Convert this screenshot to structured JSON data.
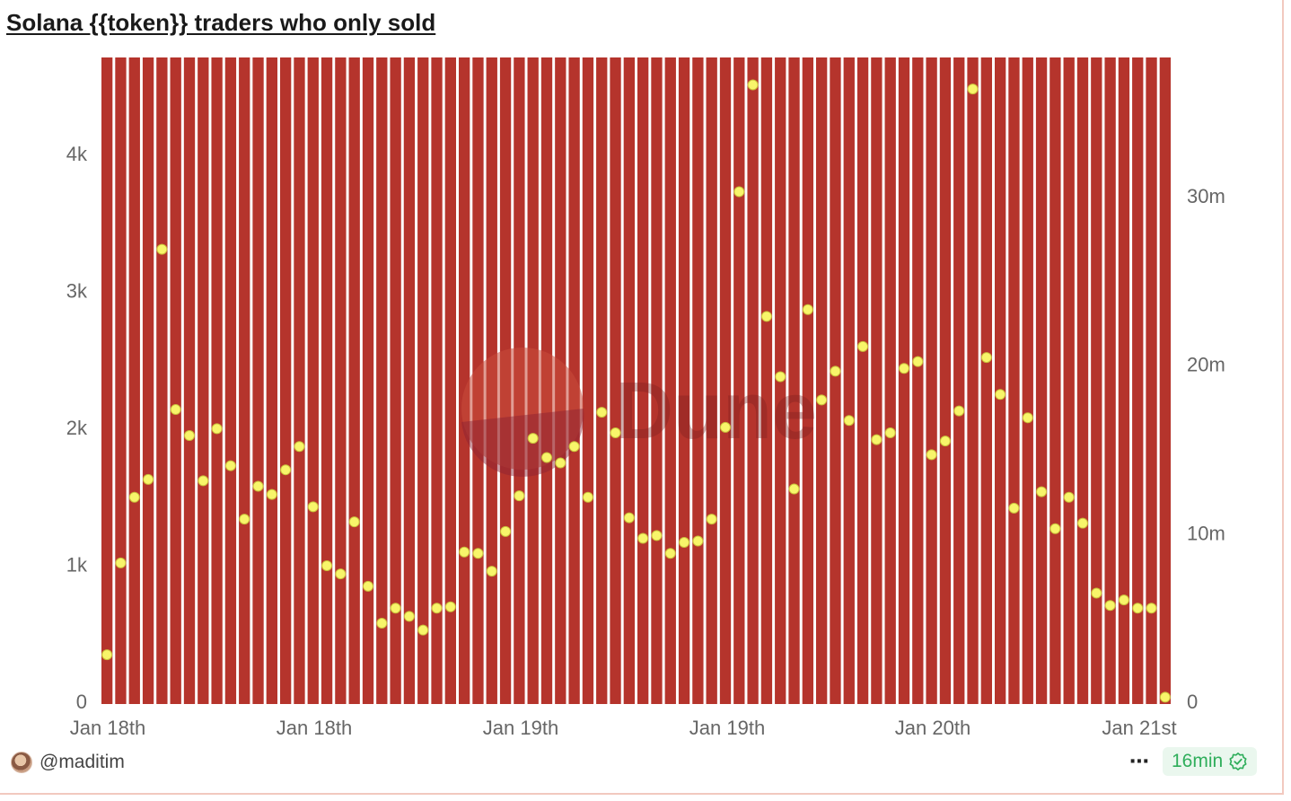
{
  "title": "Solana {{token}} traders who only sold",
  "author": {
    "handle": "@maditim",
    "avatar_icon": "user-avatar-icon"
  },
  "actions": {
    "more_label": "⋯",
    "more_icon": "more-horizontal-icon"
  },
  "freshness": {
    "label": "16min",
    "icon": "verified-check-icon",
    "color": "#2fae5b"
  },
  "watermark": "Dune",
  "chart_data": {
    "type": "bar",
    "title": "Solana {{token}} traders who only sold",
    "colors": {
      "bar": "#b5342c",
      "point": "#f8f56a",
      "point_stroke": "#c9c23a"
    },
    "left_axis": {
      "ylim": [
        0,
        4700
      ],
      "ticks": [
        0,
        1000,
        2000,
        3000,
        4000
      ],
      "tick_labels": [
        "0",
        "1k",
        "2k",
        "3k",
        "4k"
      ]
    },
    "right_axis": {
      "ylim": [
        0,
        38200000
      ],
      "ticks": [
        0,
        10000000,
        20000000,
        30000000
      ],
      "tick_labels": [
        "0",
        "10m",
        "20m",
        "30m"
      ]
    },
    "x_tick_labels": [
      "Jan 18th",
      "Jan 18th",
      "Jan 19th",
      "Jan 19th",
      "Jan 20th",
      "Jan 21st"
    ],
    "grid": false,
    "series": [
      {
        "type": "bar",
        "axis": "right",
        "note": "bars extend above visible axis range",
        "values": [
          38200000,
          38200000,
          38200000,
          38200000,
          38200000,
          38200000,
          38200000,
          38200000,
          38200000,
          38200000,
          38200000,
          38200000,
          38200000,
          38200000,
          38200000,
          38200000,
          38200000,
          38200000,
          38200000,
          38200000,
          38200000,
          38200000,
          38200000,
          38200000,
          38200000,
          38200000,
          38200000,
          38200000,
          38200000,
          38200000,
          38200000,
          38200000,
          38200000,
          38200000,
          38200000,
          38200000,
          38200000,
          38200000,
          38200000,
          38200000,
          38200000,
          38200000,
          38200000,
          38200000,
          38200000,
          38200000,
          38200000,
          38200000,
          38200000,
          38200000,
          38200000,
          38200000,
          38200000,
          38200000,
          38200000,
          38200000,
          38200000,
          38200000,
          38200000,
          38200000,
          38200000,
          38200000,
          38200000,
          38200000,
          38200000,
          38200000,
          38200000,
          38200000,
          38200000,
          38200000,
          38200000,
          38200000,
          38200000,
          38200000,
          38200000,
          38200000,
          38200000,
          38200000
        ]
      },
      {
        "type": "scatter",
        "axis": "left",
        "values": [
          340,
          1010,
          1490,
          1620,
          3300,
          2130,
          1940,
          1610,
          1990,
          1720,
          1330,
          1570,
          1510,
          1690,
          1860,
          1420,
          990,
          930,
          1310,
          840,
          570,
          680,
          620,
          520,
          680,
          690,
          1090,
          1080,
          950,
          1240,
          1500,
          1920,
          1780,
          1740,
          1860,
          1490,
          2110,
          1960,
          1340,
          1190,
          1210,
          1080,
          1160,
          1170,
          1330,
          2000,
          3720,
          4500,
          2810,
          2370,
          1550,
          2860,
          2200,
          2410,
          2050,
          2590,
          1910,
          1960,
          2430,
          2480,
          1800,
          1900,
          2120,
          4470,
          2510,
          2240,
          1410,
          2070,
          1530,
          1260,
          1490,
          1300,
          790,
          700,
          740,
          680,
          680,
          30
        ]
      }
    ]
  }
}
